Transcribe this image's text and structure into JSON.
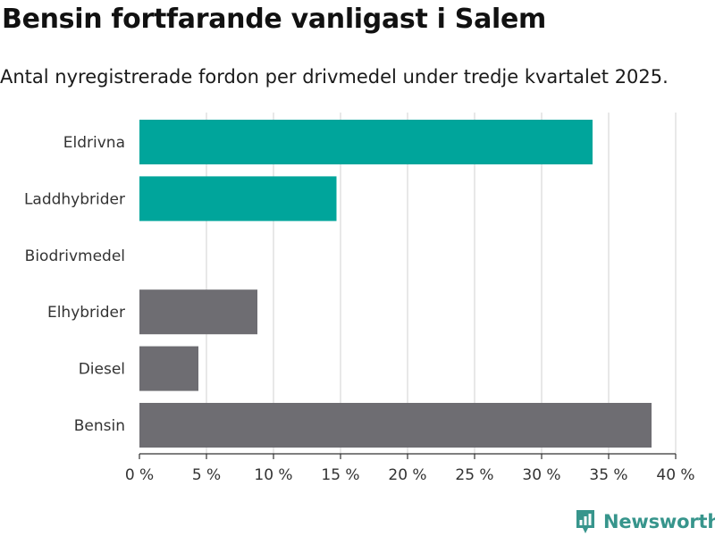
{
  "title": "Bensin fortfarande vanligast i Salem",
  "subtitle": "Antal nyregistrerade fordon per drivmedel under tredje kvartalet 2025.",
  "brand": {
    "name": "Newsworthy",
    "logo_icon": "newsworthy-chart-icon"
  },
  "colors": {
    "teal": "#00a59b",
    "gray": "#6e6d72",
    "grid": "#d9d9d9",
    "brand": "#37958c"
  },
  "chart_data": {
    "type": "bar",
    "orientation": "horizontal",
    "title": "Bensin fortfarande vanligast i Salem",
    "subtitle": "Antal nyregistrerade fordon per drivmedel under tredje kvartalet 2025.",
    "categories": [
      "Eldrivna",
      "Laddhybrider",
      "Biodrivmedel",
      "Elhybrider",
      "Diesel",
      "Bensin"
    ],
    "values": [
      33.8,
      14.7,
      0,
      8.8,
      4.4,
      38.2
    ],
    "bar_colors": [
      "teal",
      "teal",
      "teal",
      "gray",
      "gray",
      "gray"
    ],
    "unit": "%",
    "xlim": [
      0,
      40
    ],
    "xticks": [
      0,
      5,
      10,
      15,
      20,
      25,
      30,
      35,
      40
    ],
    "xtick_labels": [
      "0 %",
      "5 %",
      "10 %",
      "15 %",
      "20 %",
      "25 %",
      "30 %",
      "35 %",
      "40 %"
    ],
    "xlabel": "",
    "ylabel": "",
    "grid": true,
    "legend": "none"
  }
}
